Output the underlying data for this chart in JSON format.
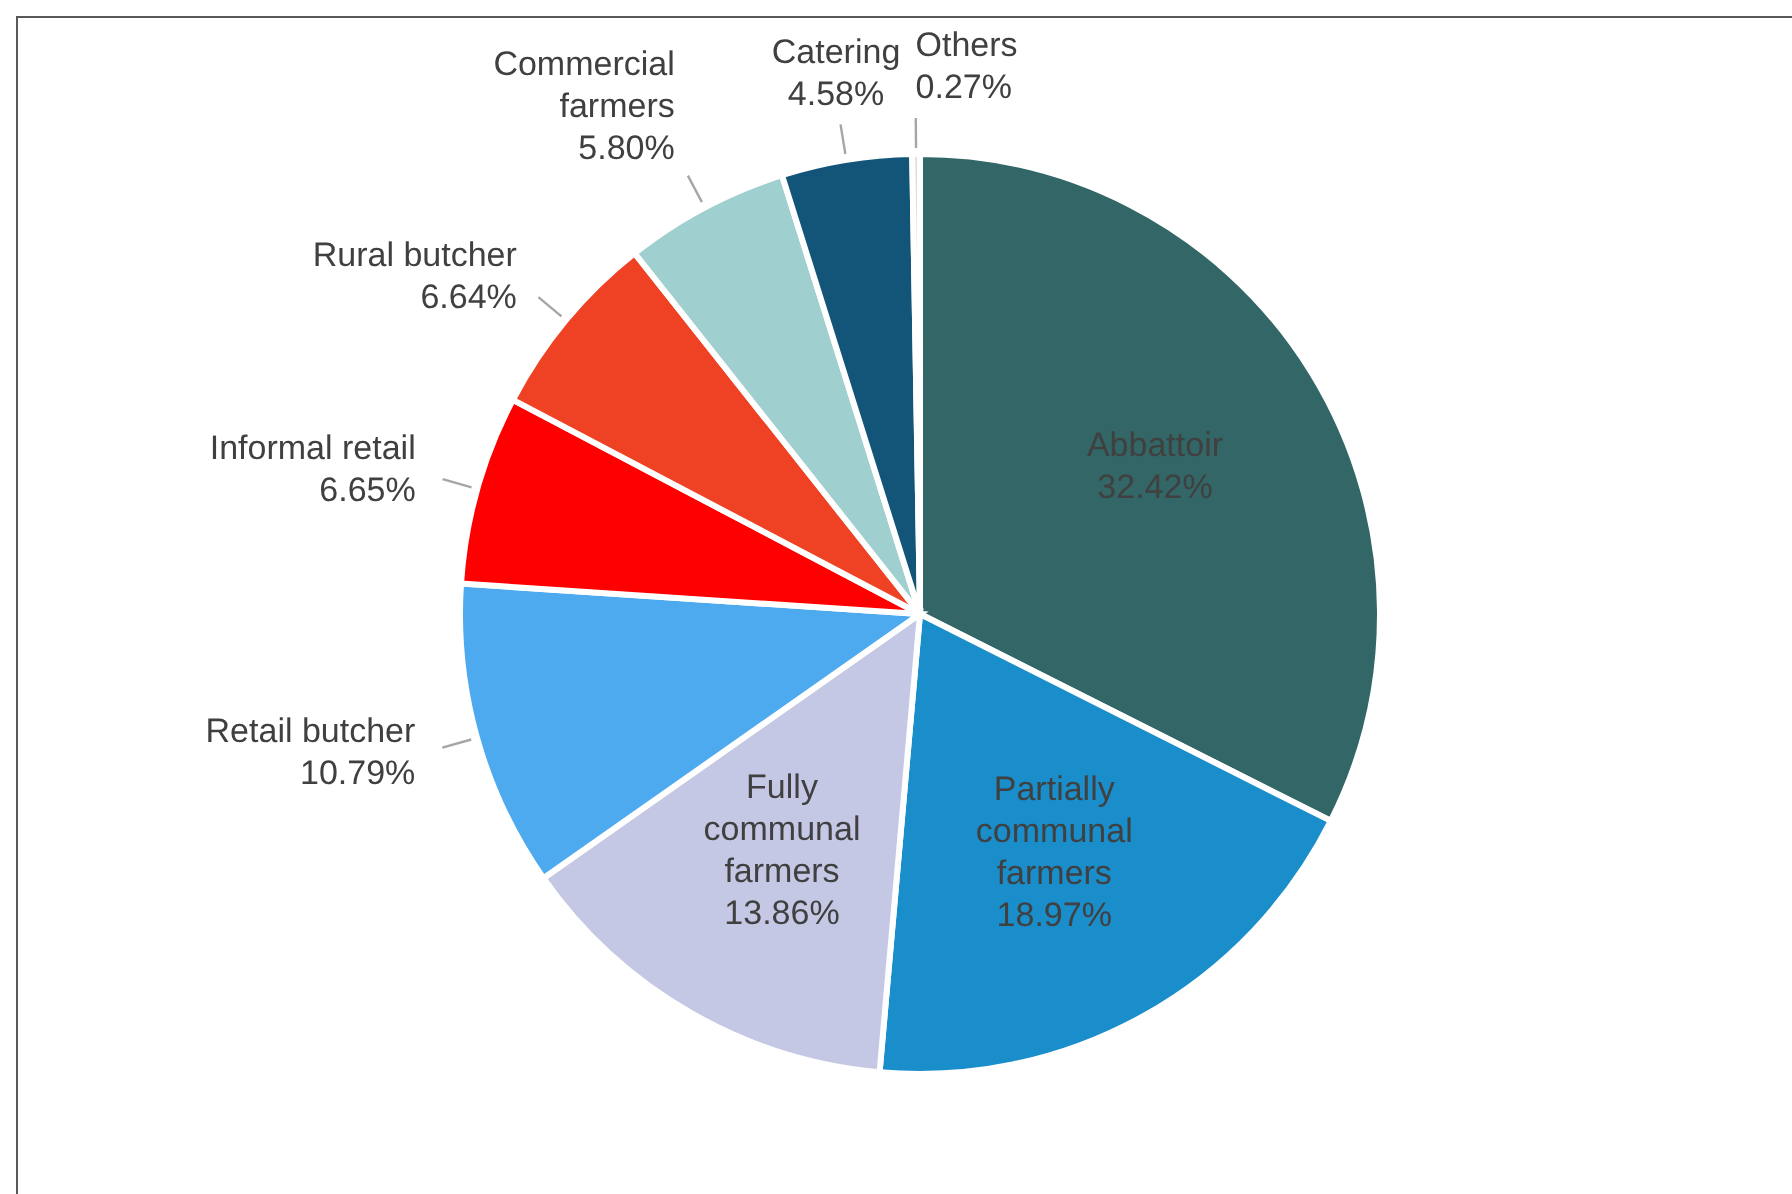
{
  "chart_data": {
    "type": "pie",
    "categories": [
      "Abbattoir",
      "Partially communal farmers",
      "Fully communal farmers",
      "Retail butcher",
      "Informal retail",
      "Rural butcher",
      "Commercial farmers",
      "Catering",
      "Others"
    ],
    "values": [
      32.42,
      18.97,
      13.86,
      10.79,
      6.65,
      6.64,
      5.8,
      4.58,
      0.27
    ],
    "colors": [
      "#336666",
      "#1a8dcb",
      "#c5c8e4",
      "#4eaaef",
      "#ff0000",
      "#ef4123",
      "#9fcfcf",
      "#125578",
      "#dddddd"
    ],
    "value_labels": [
      "32.42%",
      "18.97%",
      "13.86%",
      "10.79%",
      "6.65%",
      "6.64%",
      "5.80%",
      "4.58%",
      "0.27%"
    ]
  }
}
